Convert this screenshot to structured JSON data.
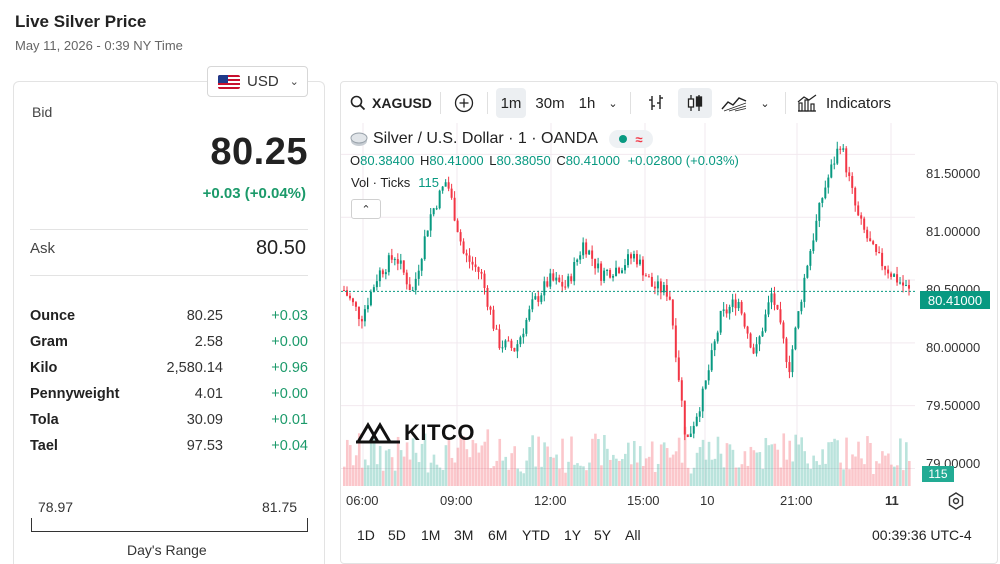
{
  "header": {
    "title": "Live Silver Price",
    "date": "May 11, 2026 - 0:39 NY Time"
  },
  "currency": {
    "label": "USD"
  },
  "quote": {
    "bid_label": "Bid",
    "bid": "80.25",
    "change": "+0.03 (+0.04%)",
    "ask_label": "Ask",
    "ask": "80.50"
  },
  "units": [
    {
      "name": "Ounce",
      "price": "80.25",
      "change": "+0.03"
    },
    {
      "name": "Gram",
      "price": "2.58",
      "change": "+0.00"
    },
    {
      "name": "Kilo",
      "price": "2,580.14",
      "change": "+0.96"
    },
    {
      "name": "Pennyweight",
      "price": "4.01",
      "change": "+0.00"
    },
    {
      "name": "Tola",
      "price": "30.09",
      "change": "+0.01"
    },
    {
      "name": "Tael",
      "price": "97.53",
      "change": "+0.04"
    }
  ],
  "day_range": {
    "low": "78.97",
    "high": "81.75",
    "label": "Day's Range"
  },
  "toolbar": {
    "symbol": "XAGUSD",
    "interval_1m": "1m",
    "interval_30m": "30m",
    "interval_1h": "1h",
    "indicators": "Indicators"
  },
  "legend": {
    "title": "Silver / U.S. Dollar · 1 · OANDA",
    "o_label": "O",
    "o": "80.38400",
    "h_label": "H",
    "h": "80.41000",
    "l_label": "L",
    "l": "80.38050",
    "c_label": "C",
    "c": "80.41000",
    "change": "+0.02800 (+0.03%)",
    "vol_label": "Vol · Ticks",
    "vol": "115"
  },
  "watermark": "KITCO",
  "price_axis": [
    "81.50000",
    "81.00000",
    "80.50000",
    "80.00000",
    "79.50000",
    "79.00000"
  ],
  "current_price_tag": "80.41000",
  "volume_tag": "115",
  "time_axis": [
    "06:00",
    "09:00",
    "12:00",
    "15:00",
    "10",
    "21:00",
    "11"
  ],
  "range_buttons": [
    "1D",
    "5D",
    "1M",
    "3M",
    "6M",
    "YTD",
    "1Y",
    "5Y",
    "All"
  ],
  "clock": "00:39:36 UTC-4",
  "colors": {
    "up": "#089981",
    "down": "#f23645",
    "accent": "#1b9a6a"
  },
  "chart_data": {
    "type": "candlestick",
    "symbol": "XAGUSD",
    "interval": "1m",
    "ylim": [
      78.9,
      81.75
    ],
    "x": [
      "06:00",
      "09:00",
      "12:00",
      "15:00",
      "10",
      "21:00",
      "11"
    ],
    "close_path": [
      80.42,
      80.2,
      80.55,
      80.7,
      80.4,
      81.0,
      81.3,
      80.7,
      80.55,
      80.0,
      79.95,
      80.3,
      80.5,
      80.45,
      80.8,
      80.55,
      80.6,
      80.7,
      80.45,
      80.4,
      79.2,
      79.6,
      80.2,
      80.35,
      79.9,
      80.4,
      79.8,
      80.6,
      81.2,
      81.6,
      81.0,
      80.7,
      80.55,
      80.41
    ],
    "volume_last": 115
  }
}
